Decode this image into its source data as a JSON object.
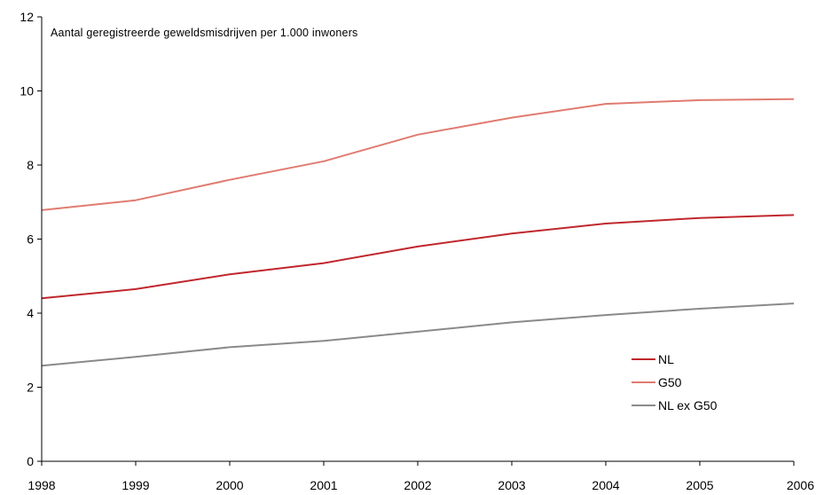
{
  "chart_data": {
    "type": "line",
    "title": "Aantal geregistreerde geweldsmisdrijven per 1.000 inwoners",
    "xlabel": "",
    "ylabel": "",
    "x": [
      1998,
      1999,
      2000,
      2001,
      2002,
      2003,
      2004,
      2005,
      2006
    ],
    "x_tick_labels": [
      "1998",
      "1999",
      "2000",
      "2001",
      "2002",
      "2003",
      "2004",
      "2005",
      "2006"
    ],
    "ylim": [
      0,
      12
    ],
    "y_ticks": [
      0,
      2,
      4,
      6,
      8,
      10,
      12
    ],
    "y_tick_labels": [
      "0",
      "2",
      "4",
      "6",
      "8",
      "10",
      "12"
    ],
    "grid": false,
    "legend_position": "bottom-right",
    "series": [
      {
        "name": "NL",
        "color": "#c0272d",
        "values": [
          4.4,
          4.65,
          5.05,
          5.35,
          5.8,
          6.15,
          6.42,
          6.57,
          6.65
        ]
      },
      {
        "name": "G50",
        "color": "#e07b70",
        "values": [
          6.78,
          7.05,
          7.6,
          8.1,
          8.82,
          9.28,
          9.65,
          9.75,
          9.78
        ]
      },
      {
        "name": "NL ex G50",
        "color": "#8a8a8a",
        "values": [
          2.58,
          2.82,
          3.08,
          3.25,
          3.5,
          3.75,
          3.95,
          4.12,
          4.26
        ]
      }
    ]
  }
}
